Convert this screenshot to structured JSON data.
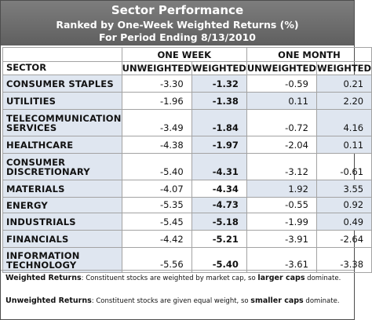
{
  "header": {
    "title": "Sector Performance",
    "subtitle": "Ranked by One-Week Weighted Returns (%)",
    "period": "For Period Ending 8/13/2010"
  },
  "table": {
    "sector_header": "SECTOR",
    "group_one_week": "ONE WEEK",
    "group_one_month": "ONE MONTH",
    "sub_unweighted": "UNWEIGHTED",
    "sub_weighted": "WEIGHTED"
  },
  "chart_data": {
    "type": "table",
    "title": "Sector Performance",
    "subtitle": "Ranked by One-Week Weighted Returns (%)",
    "columns": [
      "One Week Unweighted",
      "One Week Weighted",
      "One Month Unweighted",
      "One Month Weighted"
    ],
    "rows": [
      {
        "sector": [
          "CONSUMER STAPLES"
        ],
        "w_unw": "-3.30",
        "w_w": "-1.32",
        "m_unw": "-0.59",
        "m_w": "0.21",
        "shade": [
          false,
          true,
          false,
          true
        ]
      },
      {
        "sector": [
          "UTILITIES"
        ],
        "w_unw": "-1.96",
        "w_w": "-1.38",
        "m_unw": "0.11",
        "m_w": "2.20",
        "shade": [
          false,
          true,
          true,
          true
        ]
      },
      {
        "sector": [
          "TELECOMMUNICATION",
          "SERVICES"
        ],
        "w_unw": "-3.49",
        "w_w": "-1.84",
        "m_unw": "-0.72",
        "m_w": "4.16",
        "shade": [
          false,
          true,
          false,
          true
        ]
      },
      {
        "sector": [
          "HEALTHCARE"
        ],
        "w_unw": "-4.38",
        "w_w": "-1.97",
        "m_unw": "-2.04",
        "m_w": "0.11",
        "shade": [
          false,
          true,
          false,
          true
        ]
      },
      {
        "sector": [
          "CONSUMER",
          "DISCRETIONARY"
        ],
        "w_unw": "-5.40",
        "w_w": "-4.31",
        "m_unw": "-3.12",
        "m_w": "-0.61",
        "shade": [
          false,
          true,
          false,
          false
        ]
      },
      {
        "sector": [
          "MATERIALS"
        ],
        "w_unw": "-4.07",
        "w_w": "-4.34",
        "m_unw": "1.92",
        "m_w": "3.55",
        "shade": [
          false,
          false,
          true,
          true
        ]
      },
      {
        "sector": [
          "ENERGY"
        ],
        "w_unw": "-5.35",
        "w_w": "-4.73",
        "m_unw": "-0.55",
        "m_w": "0.92",
        "shade": [
          false,
          true,
          false,
          true
        ]
      },
      {
        "sector": [
          "INDUSTRIALS"
        ],
        "w_unw": "-5.45",
        "w_w": "-5.18",
        "m_unw": "-1.99",
        "m_w": "0.49",
        "shade": [
          false,
          true,
          false,
          true
        ]
      },
      {
        "sector": [
          "FINANCIALS"
        ],
        "w_unw": "-4.42",
        "w_w": "-5.21",
        "m_unw": "-3.91",
        "m_w": "-2.64",
        "shade": [
          false,
          false,
          false,
          false
        ]
      },
      {
        "sector": [
          "INFORMATION",
          "TECHNOLOGY"
        ],
        "w_unw": "-5.56",
        "w_w": "-5.40",
        "m_unw": "-3.61",
        "m_w": "-3.38",
        "shade": [
          false,
          false,
          false,
          false
        ]
      }
    ],
    "shade_color": "#dfe6f0"
  },
  "notes": {
    "weighted_label": "Weighted Returns",
    "weighted_text_a": ": Constituent stocks are weighted by market cap, so ",
    "weighted_bold": "larger caps",
    "weighted_text_b": " dominate.",
    "unweighted_label": "Unweighted Returns",
    "unweighted_text_a": ": Constituent stocks are given equal weight, so ",
    "unweighted_bold": "smaller caps",
    "unweighted_text_b": " dominate."
  }
}
